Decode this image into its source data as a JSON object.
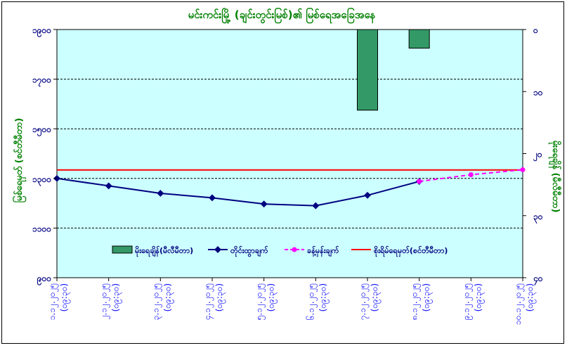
{
  "chart_data": {
    "type": "bar+line",
    "title": "မင်းကင်းမြို့ (ချင်းတွင်းမြစ်)၏ မြစ်ရေအခြေအနေ",
    "ylabel_left": "မြစ်ရေမှတ် (စင်တီမီတာ)",
    "ylabel_right": "မိုးရေချိန် (မီလီမီတာ)",
    "ylim_left": [
      900,
      1900
    ],
    "ylim_right": [
      40,
      0
    ],
    "yticks_left": [
      {
        "value": 1900,
        "label": "၁၉၀၀"
      },
      {
        "value": 1700,
        "label": "၁၇၀၀"
      },
      {
        "value": 1500,
        "label": "၁၅၀၀"
      },
      {
        "value": 1300,
        "label": "၁၃၀၀"
      },
      {
        "value": 1100,
        "label": "၁၁၀၀"
      },
      {
        "value": 900,
        "label": "၉၀၀"
      }
    ],
    "yticks_right": [
      {
        "value": 0,
        "label": "၀"
      },
      {
        "value": 10,
        "label": "၁၀"
      },
      {
        "value": 20,
        "label": "၂၀"
      },
      {
        "value": 30,
        "label": "၃၀"
      },
      {
        "value": 40,
        "label": "၄၀"
      }
    ],
    "categories": [
      {
        "date": "၁.၁၂.၂၀၂၅",
        "time": "(၀၉:၃၀)"
      },
      {
        "date": "၂.၁၂.၂၀၂၅",
        "time": "(၀၉:၃၀)"
      },
      {
        "date": "၃.၁၂.၂၀၂၅",
        "time": "(၀၉:၃၀)"
      },
      {
        "date": "၄.၁၂.၂၀၂၅",
        "time": "(၀၉:၃၀)"
      },
      {
        "date": "၅.၁၂.၂၀၂၅",
        "time": "(၀၉:၃၀)"
      },
      {
        "date": "၆.၁၂.၂၀၂၅",
        "time": "(၀၉:၃၀)"
      },
      {
        "date": "၇.၁၂.၂၀၂၅",
        "time": "(၀၉:၃၀)"
      },
      {
        "date": "၈.၁၂.၂၀၂၅",
        "time": "(၀၉:၃၀)"
      },
      {
        "date": "၉.၁၂.၂၀၂၅",
        "time": "(၀၉:၃၀)"
      },
      {
        "date": "၁၀.၁၂.၂၀၂၅",
        "time": "(၀၉:၃၀)"
      }
    ],
    "series": [
      {
        "name": "မိုးရေချိန်(မီလီမီတာ)",
        "kind": "bar",
        "axis": "right",
        "color": "#339966",
        "values": [
          0,
          0,
          0,
          0,
          0,
          0,
          13,
          3,
          null,
          null
        ]
      },
      {
        "name": "တိုင်းထွာချက်",
        "kind": "line",
        "axis": "left",
        "color": "#000080",
        "values": [
          1300,
          1270,
          1240,
          1222,
          1197,
          1190,
          1232,
          1288,
          null,
          null
        ]
      },
      {
        "name": "ခန့်မှန်းချက်",
        "kind": "line-dashed",
        "axis": "left",
        "color": "#ff00ff",
        "values": [
          null,
          null,
          null,
          null,
          null,
          null,
          null,
          1288,
          1315,
          1335
        ]
      },
      {
        "name": "စိုးရိမ်ရေမှတ်(စင်တီမီတာ)",
        "kind": "hline",
        "axis": "left",
        "color": "#ff0000",
        "value": 1334
      }
    ],
    "grid": "horizontal dashed",
    "legend_position": "bottom-inside",
    "colors": {
      "plot_bg": "#ccffff",
      "title": "#008000",
      "axis_text": "#000080",
      "category_text": "#0000ff"
    }
  }
}
